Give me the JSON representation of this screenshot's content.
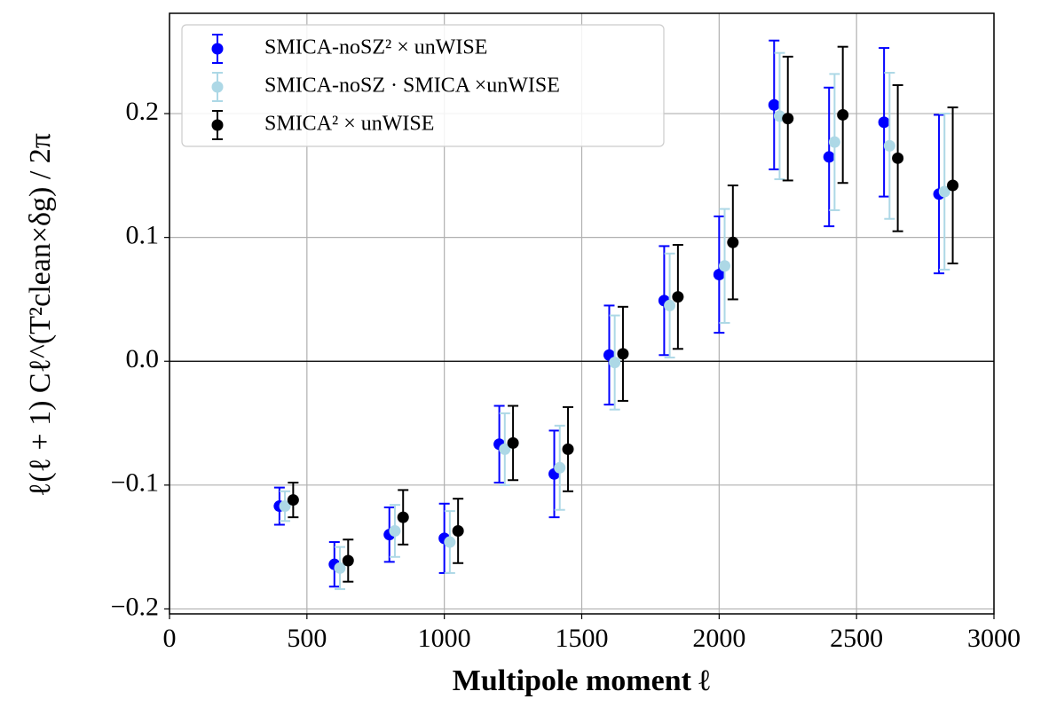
{
  "chart_data": {
    "type": "errorbar",
    "x_label": "Multipole moment ℓ",
    "y_label": "ℓ(ℓ + 1) Cℓ^(T²clean×δg) / 2π",
    "xlim": [
      0,
      3000
    ],
    "xticks": [
      0,
      500,
      1000,
      1500,
      2000,
      2500,
      3000
    ],
    "ylim": [
      -0.204,
      0.281
    ],
    "yticks": [
      {
        "value": -0.2,
        "label": "−0.2"
      },
      {
        "value": -0.1,
        "label": "−0.1"
      },
      {
        "value": 0,
        "label": "0.0"
      },
      0.1,
      0.2
    ],
    "grid": true,
    "hline": 0,
    "legend": "upper left",
    "series": [
      {
        "name": "SMICA-noSZ² × unWISE",
        "color": "#0000ff",
        "x": [
          400,
          600,
          800,
          1000,
          1200,
          1400,
          1600,
          1800,
          2000,
          2200,
          2400,
          2600,
          2800
        ],
        "values": [
          -0.117,
          -0.164,
          -0.14,
          -0.143,
          -0.067,
          -0.091,
          0.005,
          0.049,
          0.07,
          0.207,
          0.165,
          0.193,
          0.135
        ],
        "errors": [
          0.015,
          0.018,
          0.022,
          0.028,
          0.031,
          0.035,
          0.04,
          0.044,
          0.047,
          0.052,
          0.056,
          0.06,
          0.064
        ]
      },
      {
        "name": "SMICA-noSZ · SMICA ×unWISE",
        "color": "#add8e6",
        "x": [
          420,
          620,
          820,
          1020,
          1220,
          1420,
          1620,
          1820,
          2020,
          2220,
          2420,
          2620,
          2820
        ],
        "values": [
          -0.117,
          -0.167,
          -0.137,
          -0.146,
          -0.071,
          -0.086,
          -0.001,
          0.045,
          0.077,
          0.198,
          0.177,
          0.174,
          0.137
        ],
        "errors": [
          0.012,
          0.017,
          0.021,
          0.025,
          0.029,
          0.034,
          0.038,
          0.042,
          0.046,
          0.051,
          0.055,
          0.059,
          0.063
        ]
      },
      {
        "name": "SMICA² × unWISE",
        "color": "#000000",
        "x": [
          450,
          650,
          850,
          1050,
          1250,
          1450,
          1650,
          1850,
          2050,
          2250,
          2450,
          2650,
          2850
        ],
        "values": [
          -0.112,
          -0.161,
          -0.126,
          -0.137,
          -0.066,
          -0.071,
          0.006,
          0.052,
          0.096,
          0.196,
          0.199,
          0.164,
          0.142
        ],
        "errors": [
          0.014,
          0.017,
          0.022,
          0.026,
          0.03,
          0.034,
          0.038,
          0.042,
          0.046,
          0.05,
          0.055,
          0.059,
          0.063
        ]
      }
    ]
  }
}
